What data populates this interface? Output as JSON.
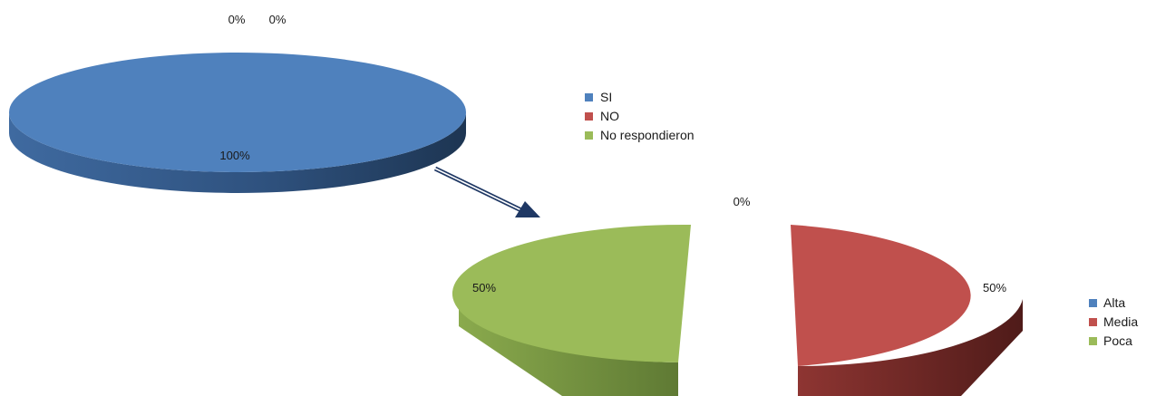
{
  "chart_data": [
    {
      "type": "pie",
      "categories": [
        "SI",
        "NO",
        "No respondieron"
      ],
      "values": [
        100,
        0,
        0
      ],
      "data_labels": [
        "100%",
        "0%",
        "0%"
      ],
      "colors": [
        "#4f81bd",
        "#c0504d",
        "#9bbb59"
      ],
      "legend": {
        "position": "right",
        "entries": [
          "SI",
          "NO",
          "No respondieron"
        ]
      }
    },
    {
      "type": "pie",
      "categories": [
        "Alta",
        "Media",
        "Poca"
      ],
      "values": [
        0,
        50,
        50
      ],
      "data_labels": [
        "0%",
        "50%",
        "50%"
      ],
      "colors": [
        "#4f81bd",
        "#c0504d",
        "#9bbb59"
      ],
      "exploded": true,
      "legend": {
        "position": "right",
        "entries": [
          "Alta",
          "Media",
          "Poca"
        ]
      }
    }
  ],
  "annotations": {
    "arrow": "pointer from first pie to second pie"
  }
}
